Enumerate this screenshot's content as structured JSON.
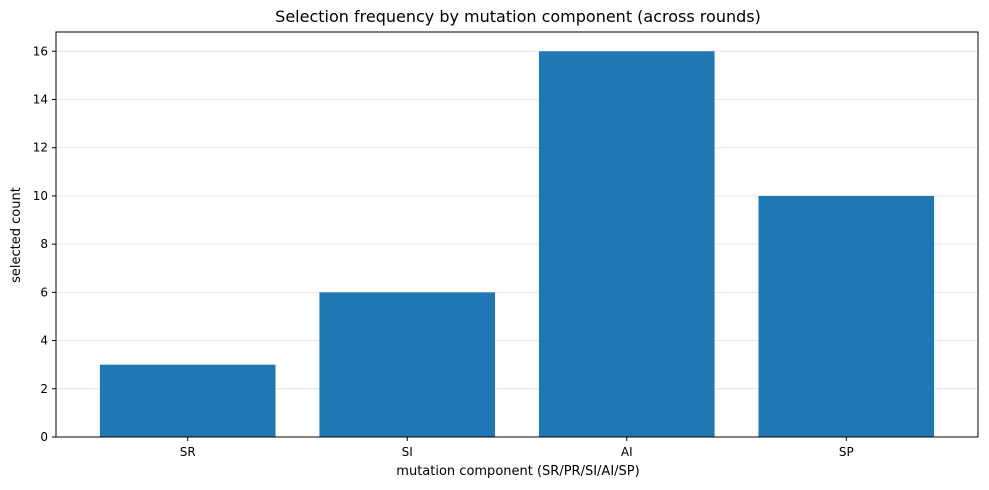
{
  "chart_data": {
    "type": "bar",
    "title": "Selection frequency by mutation component (across rounds)",
    "xlabel": "mutation component (SR/PR/SI/AI/SP)",
    "ylabel": "selected count",
    "categories": [
      "SR",
      "SI",
      "AI",
      "SP"
    ],
    "values": [
      3,
      6,
      16,
      10
    ],
    "ylim": [
      0,
      16.8
    ],
    "yticks": [
      0,
      2,
      4,
      6,
      8,
      10,
      12,
      14,
      16
    ],
    "grid": "horizontal",
    "bar_color": "#1f77b4"
  }
}
